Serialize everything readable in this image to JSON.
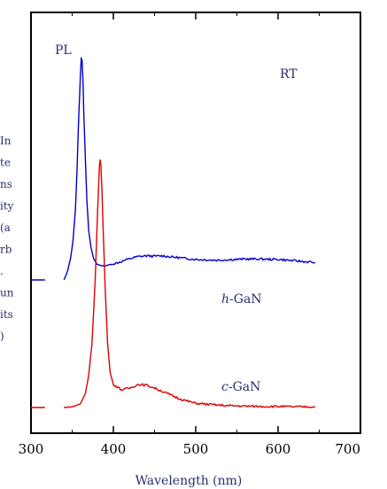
{
  "chart_data": {
    "type": "line",
    "xlabel": "Wavelength (nm)",
    "ylabel_fragments": [
      "In",
      "te",
      "ns",
      "ity",
      "(a",
      "rb",
      ".",
      "un",
      "its",
      ")"
    ],
    "xlim": [
      300,
      700
    ],
    "x_ticks": [
      "300",
      "400",
      "500",
      "600",
      "700"
    ],
    "annotations": {
      "top_left": "PL",
      "top_right": "RT"
    },
    "series": [
      {
        "name": "h-GaN",
        "name_prefix": "h",
        "name_suffix": "-GaN",
        "color": "#0000cc",
        "offset_level": 0.36,
        "points": [
          [
            300,
            0.36
          ],
          [
            335,
            0.36
          ],
          [
            340,
            0.36
          ],
          [
            342,
            0.37
          ],
          [
            345,
            0.39
          ],
          [
            348,
            0.42
          ],
          [
            351,
            0.47
          ],
          [
            354,
            0.56
          ],
          [
            356,
            0.68
          ],
          [
            358,
            0.82
          ],
          [
            360,
            0.94
          ],
          [
            361,
            0.985
          ],
          [
            362,
            0.98
          ],
          [
            363,
            0.93
          ],
          [
            364,
            0.84
          ],
          [
            366,
            0.7
          ],
          [
            368,
            0.58
          ],
          [
            370,
            0.5
          ],
          [
            373,
            0.45
          ],
          [
            376,
            0.42
          ],
          [
            380,
            0.405
          ],
          [
            385,
            0.4
          ],
          [
            390,
            0.4
          ],
          [
            400,
            0.405
          ],
          [
            410,
            0.412
          ],
          [
            420,
            0.42
          ],
          [
            430,
            0.426
          ],
          [
            440,
            0.428
          ],
          [
            450,
            0.427
          ],
          [
            460,
            0.428
          ],
          [
            470,
            0.425
          ],
          [
            480,
            0.423
          ],
          [
            490,
            0.42
          ],
          [
            500,
            0.418
          ],
          [
            510,
            0.417
          ],
          [
            520,
            0.416
          ],
          [
            530,
            0.416
          ],
          [
            540,
            0.417
          ],
          [
            550,
            0.418
          ],
          [
            560,
            0.419
          ],
          [
            570,
            0.419
          ],
          [
            580,
            0.419
          ],
          [
            590,
            0.418
          ],
          [
            600,
            0.418
          ],
          [
            610,
            0.416
          ],
          [
            620,
            0.414
          ],
          [
            630,
            0.412
          ],
          [
            640,
            0.41
          ],
          [
            645,
            0.409
          ]
        ]
      },
      {
        "name": "c-GaN",
        "name_prefix": "c",
        "name_suffix": "-GaN",
        "color": "#dd0000",
        "offset_level": 0.0,
        "points": [
          [
            300,
            0.0
          ],
          [
            335,
            0.0
          ],
          [
            340,
            0.0
          ],
          [
            350,
            0.002
          ],
          [
            360,
            0.01
          ],
          [
            366,
            0.04
          ],
          [
            370,
            0.09
          ],
          [
            374,
            0.18
          ],
          [
            378,
            0.36
          ],
          [
            381,
            0.56
          ],
          [
            383,
            0.68
          ],
          [
            384,
            0.7
          ],
          [
            385,
            0.68
          ],
          [
            386,
            0.62
          ],
          [
            388,
            0.48
          ],
          [
            390,
            0.34
          ],
          [
            393,
            0.18
          ],
          [
            396,
            0.1
          ],
          [
            400,
            0.065
          ],
          [
            410,
            0.05
          ],
          [
            420,
            0.055
          ],
          [
            430,
            0.065
          ],
          [
            440,
            0.063
          ],
          [
            450,
            0.055
          ],
          [
            460,
            0.045
          ],
          [
            470,
            0.035
          ],
          [
            480,
            0.025
          ],
          [
            490,
            0.018
          ],
          [
            500,
            0.012
          ],
          [
            520,
            0.008
          ],
          [
            540,
            0.005
          ],
          [
            560,
            0.004
          ],
          [
            580,
            0.003
          ],
          [
            600,
            0.003
          ],
          [
            620,
            0.002
          ],
          [
            645,
            0.002
          ]
        ]
      }
    ],
    "grid": false
  }
}
